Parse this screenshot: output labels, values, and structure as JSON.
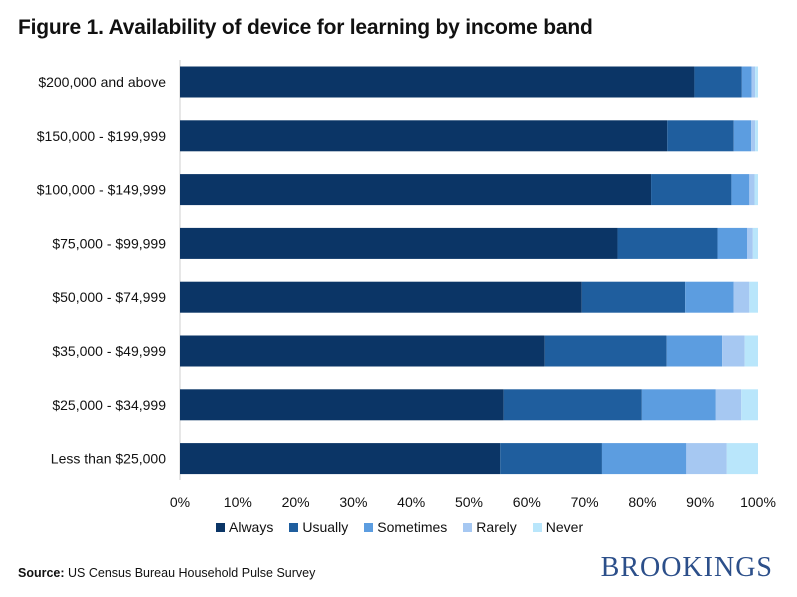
{
  "title": "Figure 1. Availability of device for learning by income band",
  "source_label": "Source:",
  "source_text": " US Census Bureau Household Pulse Survey",
  "brand": "BROOKINGS",
  "chart_data": {
    "type": "bar",
    "orientation": "horizontal",
    "stacked": true,
    "title": "Figure 1. Availability of device for learning by income band",
    "categories": [
      "$200,000 and above",
      "$150,000 - $199,999",
      "$100,000 - $149,999",
      "$75,000 - $99,999",
      "$50,000 - $74,999",
      "$35,000 - $49,999",
      "$25,000 - $34,999",
      "Less than $25,000"
    ],
    "series": [
      {
        "name": "Always",
        "color": "#0b3566",
        "values": [
          89,
          84.3,
          81.5,
          75.7,
          69.5,
          63.1,
          56,
          55.4
        ]
      },
      {
        "name": "Usually",
        "color": "#1f5e9e",
        "values": [
          8.2,
          11.5,
          13.9,
          17.3,
          17.9,
          21.1,
          23.9,
          17.6
        ]
      },
      {
        "name": "Sometimes",
        "color": "#5c9de0",
        "values": [
          1.7,
          3,
          3.1,
          5.1,
          8.4,
          9.6,
          12.8,
          14.6
        ]
      },
      {
        "name": "Rarely",
        "color": "#a6c8f2",
        "values": [
          0.6,
          0.7,
          0.9,
          1,
          2.7,
          3.9,
          4.4,
          7
        ]
      },
      {
        "name": "Never",
        "color": "#b9e6fb",
        "values": [
          0.5,
          0.5,
          0.6,
          0.9,
          1.5,
          2.3,
          2.9,
          5.4
        ]
      }
    ],
    "xlim": [
      0,
      100
    ],
    "xticks": [
      "0%",
      "10%",
      "20%",
      "30%",
      "40%",
      "50%",
      "60%",
      "70%",
      "80%",
      "90%",
      "100%"
    ],
    "grid": false,
    "legend_position": "bottom"
  }
}
